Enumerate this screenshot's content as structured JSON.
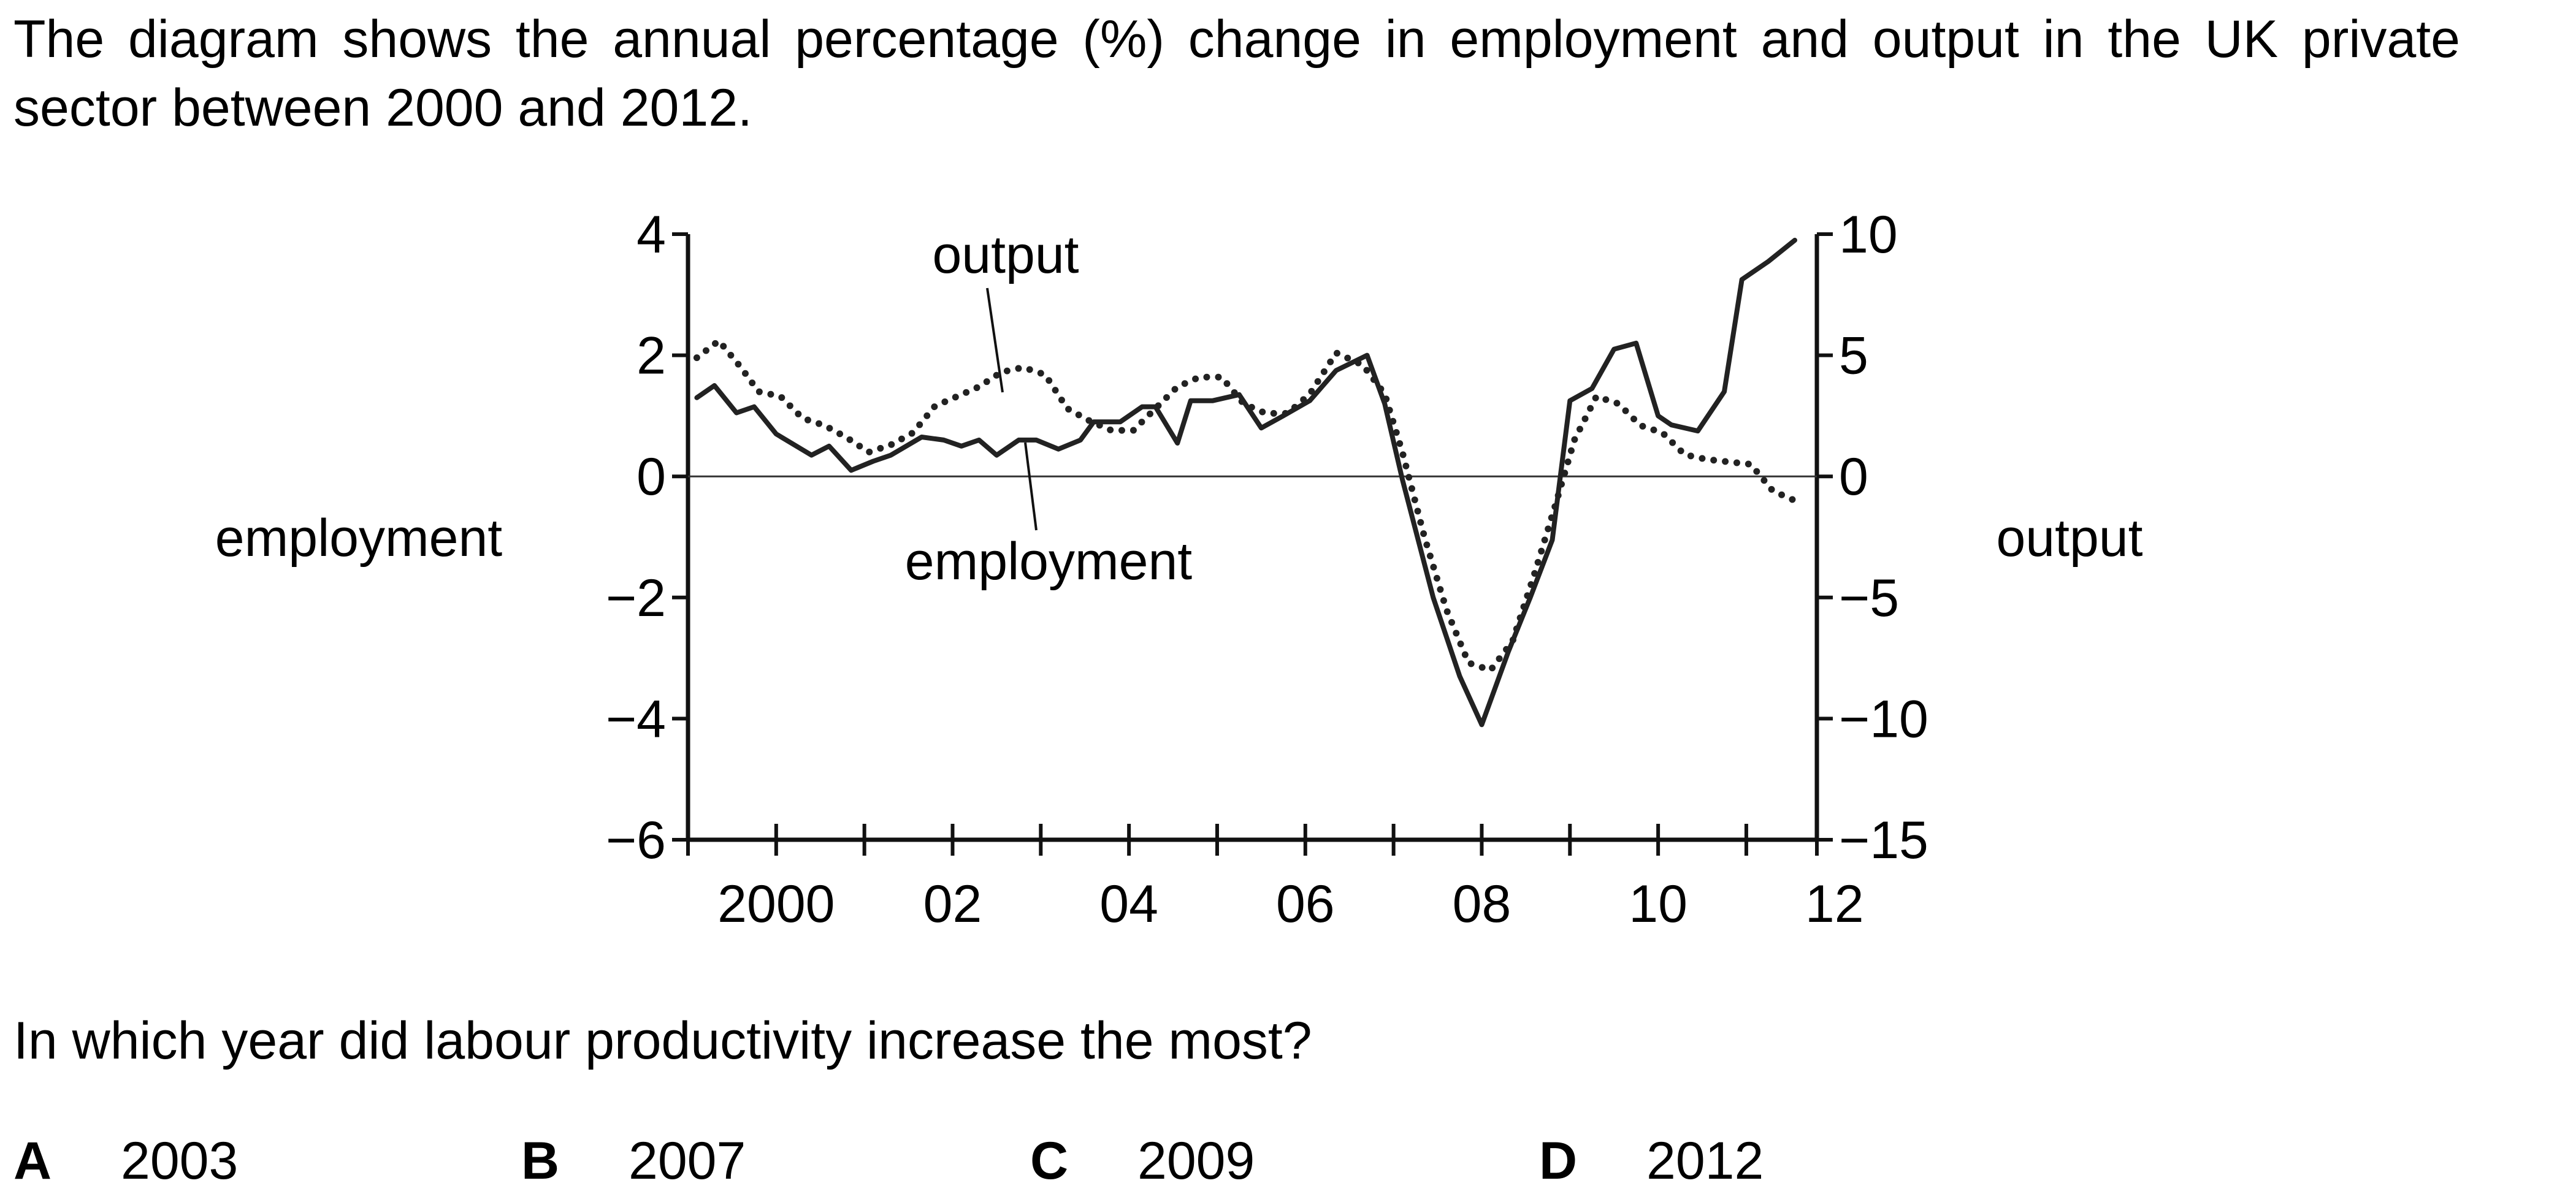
{
  "intro": "The diagram shows the annual percentage (%) change in employment and output in the UK private sector between 2000 and 2012.",
  "question": "In which year did labour productivity increase the most?",
  "options": [
    {
      "letter": "A",
      "value": "2003"
    },
    {
      "letter": "B",
      "value": "2007"
    },
    {
      "letter": "C",
      "value": "2009"
    },
    {
      "letter": "D",
      "value": "2012"
    }
  ],
  "chart_data": {
    "type": "line",
    "title": "",
    "xlabel": "",
    "y_left_label": "employment",
    "y_right_label": "output",
    "xlim": [
      2000,
      2012.8
    ],
    "ylim_left": [
      -6,
      4
    ],
    "ylim_right": [
      -15,
      10
    ],
    "x_ticks": [
      2000,
      2002,
      2004,
      2006,
      2008,
      2010,
      2012
    ],
    "x_tick_labels": [
      "2000",
      "02",
      "04",
      "06",
      "08",
      "10",
      "12"
    ],
    "y_left_ticks": [
      4,
      2,
      0,
      -2,
      -4,
      -6
    ],
    "y_left_tick_labels": [
      "4",
      "2",
      "0",
      "−2",
      "−4",
      "−6"
    ],
    "y_right_ticks": [
      10,
      5,
      0,
      -5,
      -10,
      -15
    ],
    "y_right_tick_labels": [
      "10",
      "5",
      "0",
      "−5",
      "−10",
      "−15"
    ],
    "annotations": [
      "output",
      "employment"
    ],
    "series": [
      {
        "name": "employment",
        "axis": "left",
        "style": "solid",
        "color": "#222222",
        "x": [
          2000.1,
          2000.3,
          2000.55,
          2000.75,
          2001.0,
          2001.4,
          2001.6,
          2001.85,
          2002.1,
          2002.3,
          2002.65,
          2002.9,
          2003.1,
          2003.3,
          2003.5,
          2003.75,
          2003.95,
          2004.2,
          2004.45,
          2004.6,
          2004.9,
          2005.15,
          2005.3,
          2005.55,
          2005.7,
          2005.95,
          2006.25,
          2006.5,
          2006.75,
          2007.05,
          2007.35,
          2007.7,
          2007.9,
          2008.1,
          2008.45,
          2008.75,
          2009.0,
          2009.3,
          2009.55,
          2009.8,
          2010.0,
          2010.25,
          2010.5,
          2010.75,
          2011.0,
          2011.15,
          2011.45,
          2011.75,
          2011.95,
          2012.25,
          2012.55
        ],
        "y": [
          1.3,
          1.5,
          1.05,
          1.15,
          0.7,
          0.35,
          0.5,
          0.1,
          0.25,
          0.35,
          0.65,
          0.6,
          0.5,
          0.6,
          0.35,
          0.6,
          0.6,
          0.45,
          0.6,
          0.9,
          0.9,
          1.15,
          1.15,
          0.55,
          1.25,
          1.25,
          1.35,
          0.8,
          1.0,
          1.25,
          1.75,
          2.0,
          1.2,
          -0.05,
          -2.0,
          -3.3,
          -4.1,
          -2.9,
          -2.0,
          -1.05,
          1.25,
          1.45,
          2.1,
          2.2,
          1.0,
          0.85,
          0.75,
          1.4,
          3.25,
          3.55,
          3.9
        ]
      },
      {
        "name": "output",
        "axis": "right",
        "style": "dotted",
        "color": "#222222",
        "x": [
          2000.1,
          2000.35,
          2000.6,
          2000.8,
          2001.05,
          2001.3,
          2001.55,
          2001.8,
          2002.05,
          2002.3,
          2002.55,
          2002.8,
          2003.05,
          2003.3,
          2003.55,
          2003.8,
          2004.05,
          2004.3,
          2004.55,
          2004.8,
          2005.05,
          2005.3,
          2005.55,
          2005.8,
          2006.05,
          2006.3,
          2006.55,
          2006.8,
          2007.05,
          2007.35,
          2007.65,
          2007.9,
          2008.1,
          2008.35,
          2008.6,
          2008.85,
          2009.1,
          2009.35,
          2009.6,
          2009.85,
          2010.05,
          2010.3,
          2010.55,
          2010.8,
          2011.05,
          2011.3,
          2011.55,
          2011.8,
          2012.05,
          2012.3,
          2012.55
        ],
        "y": [
          4.9,
          5.6,
          4.5,
          3.5,
          3.3,
          2.4,
          2.1,
          1.6,
          1.0,
          1.3,
          1.8,
          2.9,
          3.3,
          3.7,
          4.3,
          4.5,
          4.2,
          2.8,
          2.3,
          1.9,
          1.9,
          2.8,
          3.7,
          4.1,
          4.1,
          3.0,
          2.6,
          2.6,
          3.4,
          5.1,
          4.6,
          3.4,
          1.0,
          -2.5,
          -5.5,
          -7.7,
          -8.0,
          -6.8,
          -4.0,
          -1.0,
          1.5,
          3.3,
          3.0,
          2.1,
          1.8,
          0.9,
          0.7,
          0.6,
          0.5,
          -0.6,
          -1.0
        ]
      }
    ]
  }
}
